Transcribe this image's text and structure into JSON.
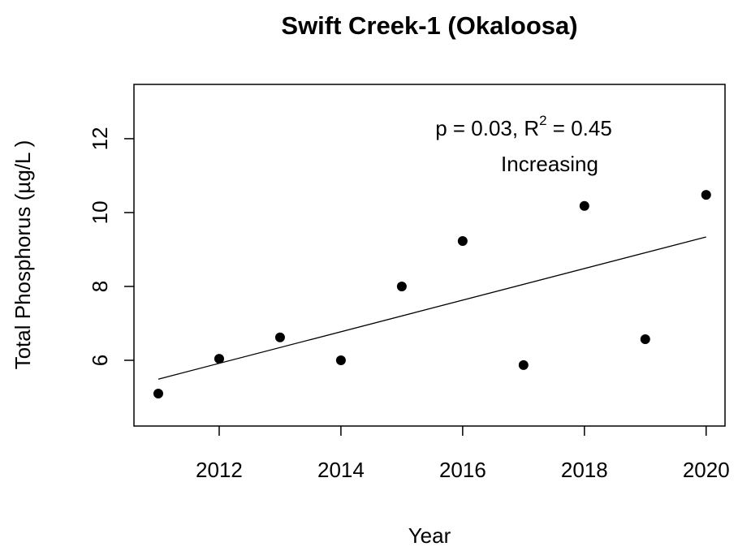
{
  "chart_data": {
    "type": "scatter",
    "title": "Swift Creek-1 (Okaloosa)",
    "x_label": "Year",
    "y_label": "Total Phosphorus (µg/L )",
    "annotation": [
      "p = 0.03, R",
      "2",
      " = 0.45"
    ],
    "annotation_2": "Increasing",
    "x": [
      2011,
      2012,
      2013,
      2014,
      2015,
      2016,
      2017,
      2018,
      2019,
      2020
    ],
    "values": [
      5.1,
      6.04,
      6.62,
      6.0,
      8.0,
      9.23,
      5.87,
      10.18,
      6.57,
      10.48
    ],
    "color": "#000000",
    "trend": {
      "x": [
        2011,
        2020
      ],
      "values": [
        5.49,
        9.34
      ]
    },
    "xlim": [
      2010.6,
      2020.31
    ],
    "ylim": [
      4.22,
      13.47
    ],
    "xticks": [
      2012,
      2014,
      2016,
      2018,
      2020
    ],
    "yticks": [
      6,
      8,
      10,
      12
    ]
  }
}
